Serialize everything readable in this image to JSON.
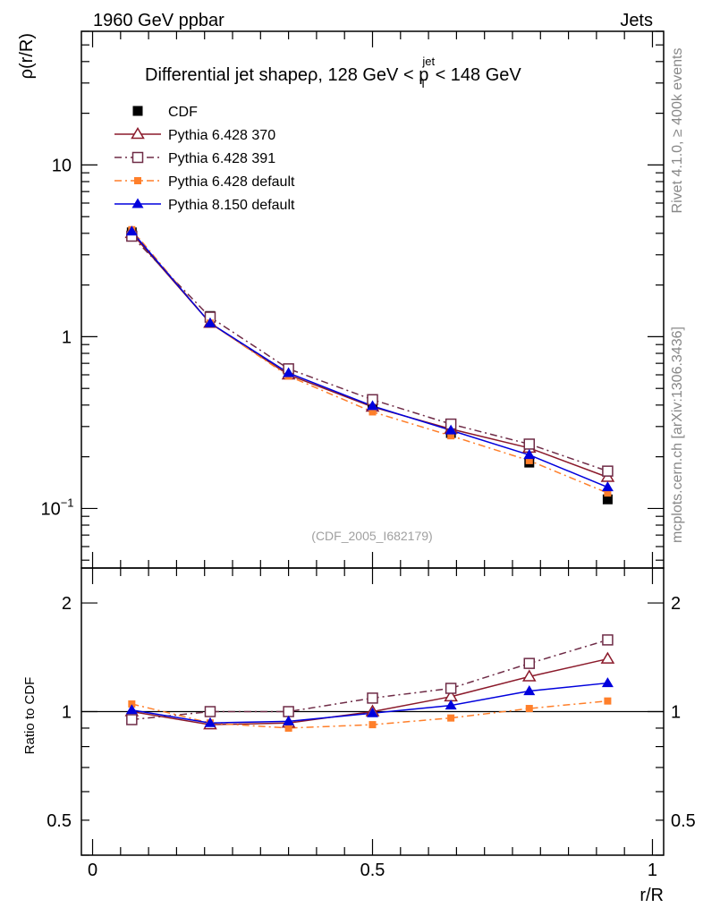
{
  "header": {
    "left": "1960 GeV ppbar",
    "right": "Jets"
  },
  "side_labels": {
    "rivet": "Rivet 4.1.0, ≥ 400k events",
    "mcplots": "mcplots.cern.ch [arXiv:1306.3436]"
  },
  "title": {
    "main": "Differential jet shapeρ, 128 GeV < p",
    "sup": "jet",
    "sub": "T",
    "tail": " < 148 GeV"
  },
  "analysis_tag": "(CDF_2005_I682179)",
  "colors": {
    "cdf": "#000000",
    "p370": "#8b1a2b",
    "p391": "#6e2b46",
    "p6def": "#ff7f2a",
    "p8def": "#0000dd"
  },
  "chart_data": [
    {
      "type": "line",
      "title": "Differential jet shapeρ, 128 GeV < p_T^jet < 148 GeV",
      "ylabel": "ρ(r/R)",
      "xlabel": "",
      "yscale": "log",
      "ylim": [
        0.045,
        60
      ],
      "xlim": [
        -0.02,
        1.02
      ],
      "y_ticks": [
        {
          "v": 10,
          "base": "10",
          "exp": ""
        },
        {
          "v": 1,
          "base": "1",
          "exp": ""
        },
        {
          "v": 0.1,
          "base": "10",
          "exp": "−1"
        }
      ],
      "x": [
        0.07,
        0.21,
        0.35,
        0.5,
        0.64,
        0.78,
        0.92
      ],
      "legend": [
        {
          "key": "cdf",
          "label": "CDF",
          "marker": "filled-square",
          "dash": "none"
        },
        {
          "key": "p370",
          "label": "Pythia 6.428 370",
          "marker": "open-triangle",
          "dash": "solid"
        },
        {
          "key": "p391",
          "label": "Pythia 6.428 391",
          "marker": "open-square",
          "dash": "dashdot"
        },
        {
          "key": "p6def",
          "label": "Pythia 6.428 default",
          "marker": "filled-small-square",
          "dash": "dashdot"
        },
        {
          "key": "p8def",
          "label": "Pythia 8.150 default",
          "marker": "filled-triangle",
          "dash": "solid"
        }
      ],
      "series": [
        {
          "key": "cdf",
          "name": "CDF",
          "values": [
            4.05,
            1.32,
            0.65,
            0.395,
            0.275,
            0.185,
            0.113
          ]
        },
        {
          "key": "p370",
          "name": "Pythia 6.428 370",
          "values": [
            4.0,
            1.2,
            0.6,
            0.39,
            0.29,
            0.225,
            0.152
          ]
        },
        {
          "key": "p391",
          "name": "Pythia 6.428 391",
          "values": [
            3.85,
            1.3,
            0.65,
            0.43,
            0.31,
            0.237,
            0.165
          ]
        },
        {
          "key": "p6def",
          "name": "Pythia 6.428 default",
          "values": [
            4.2,
            1.2,
            0.59,
            0.365,
            0.265,
            0.19,
            0.123
          ]
        },
        {
          "key": "p8def",
          "name": "Pythia 8.150 default",
          "values": [
            4.1,
            1.2,
            0.615,
            0.395,
            0.285,
            0.205,
            0.133
          ]
        }
      ]
    },
    {
      "type": "line",
      "title": "",
      "ylabel": "Ratio to CDF",
      "xlabel": "r/R",
      "yscale": "log",
      "ylim": [
        0.4,
        2.5
      ],
      "xlim": [
        -0.02,
        1.02
      ],
      "y_ticks": [
        {
          "v": 2,
          "label": "2"
        },
        {
          "v": 1,
          "label": "1"
        },
        {
          "v": 0.5,
          "label": "0.5"
        }
      ],
      "x_ticks": [
        {
          "v": 0,
          "label": "0"
        },
        {
          "v": 0.5,
          "label": "0.5"
        },
        {
          "v": 1,
          "label": "1"
        }
      ],
      "x": [
        0.07,
        0.21,
        0.35,
        0.5,
        0.64,
        0.78,
        0.92
      ],
      "reference": 1,
      "series": [
        {
          "key": "p370",
          "name": "Pythia 6.428 370",
          "values": [
            1.0,
            0.92,
            0.93,
            1.0,
            1.1,
            1.25,
            1.4
          ]
        },
        {
          "key": "p391",
          "name": "Pythia 6.428 391",
          "values": [
            0.95,
            1.0,
            1.0,
            1.09,
            1.16,
            1.36,
            1.58
          ]
        },
        {
          "key": "p6def",
          "name": "Pythia 6.428 default",
          "values": [
            1.05,
            0.93,
            0.9,
            0.92,
            0.96,
            1.02,
            1.07
          ]
        },
        {
          "key": "p8def",
          "name": "Pythia 8.150 default",
          "values": [
            1.01,
            0.93,
            0.94,
            0.99,
            1.04,
            1.14,
            1.2
          ]
        }
      ]
    }
  ]
}
